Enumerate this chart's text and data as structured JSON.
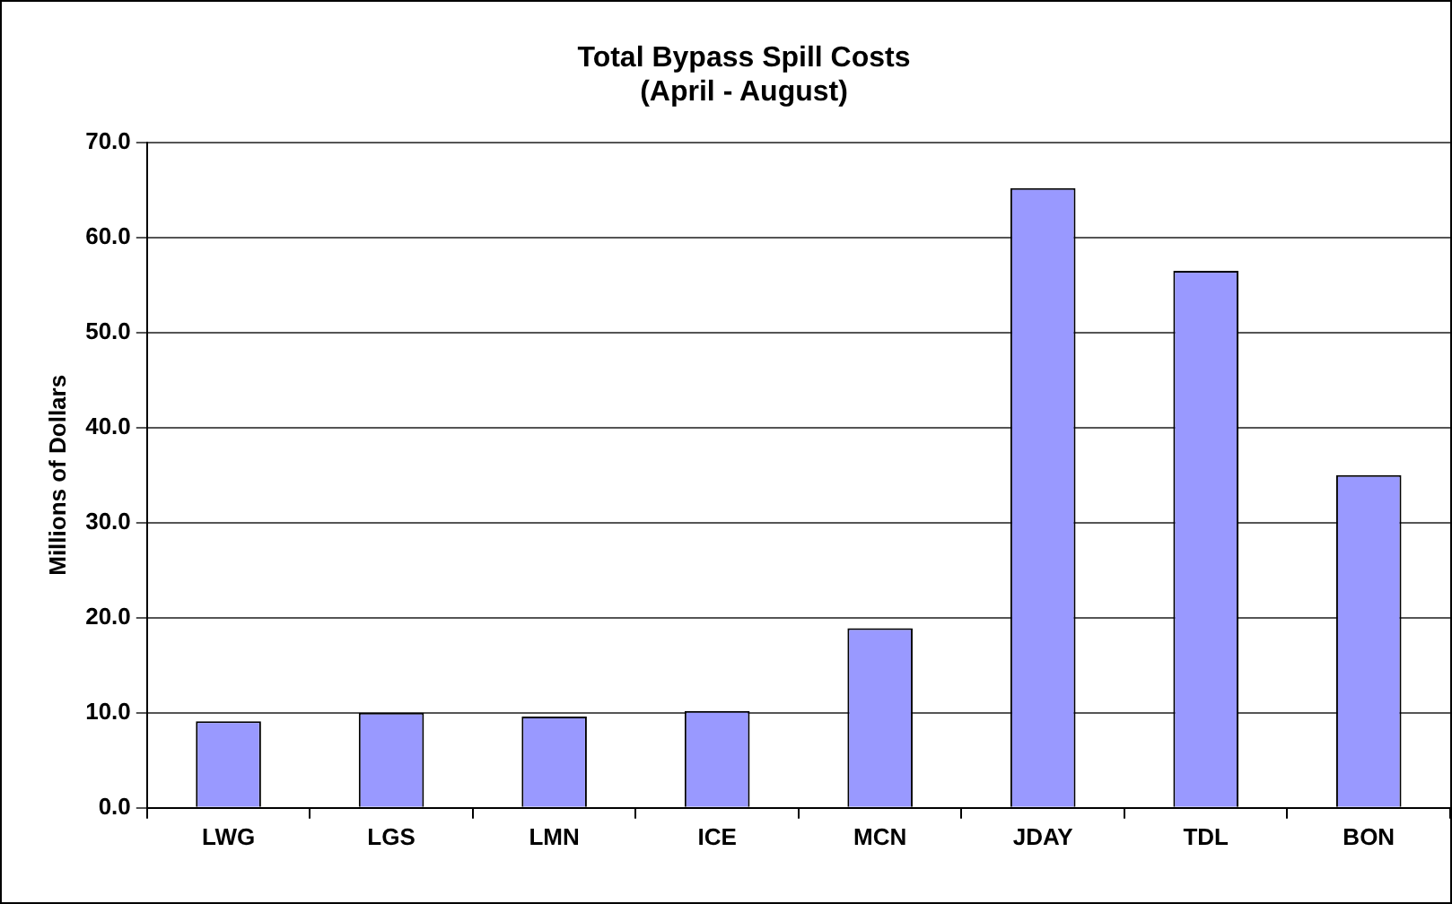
{
  "chart_data": {
    "type": "bar",
    "title": [
      "Total Bypass Spill Costs",
      "(April - August)"
    ],
    "ylabel": "Millions of Dollars",
    "categories": [
      "LWG",
      "LGS",
      "LMN",
      "ICE",
      "MCN",
      "JDAY",
      "TDL",
      "BON"
    ],
    "values": [
      9.1,
      10.0,
      9.6,
      10.2,
      18.9,
      65.2,
      56.5,
      35.0
    ],
    "color": "#9999ff",
    "ylim": [
      0,
      70
    ],
    "yticks": [
      {
        "value": 0,
        "label": "0.0"
      },
      {
        "value": 10,
        "label": "10.0"
      },
      {
        "value": 20,
        "label": "20.0"
      },
      {
        "value": 30,
        "label": "30.0"
      },
      {
        "value": 40,
        "label": "40.0"
      },
      {
        "value": 50,
        "label": "50.0"
      },
      {
        "value": 60,
        "label": "60.0"
      },
      {
        "value": 70,
        "label": "70.0"
      }
    ],
    "grid": "y",
    "legend": false
  }
}
